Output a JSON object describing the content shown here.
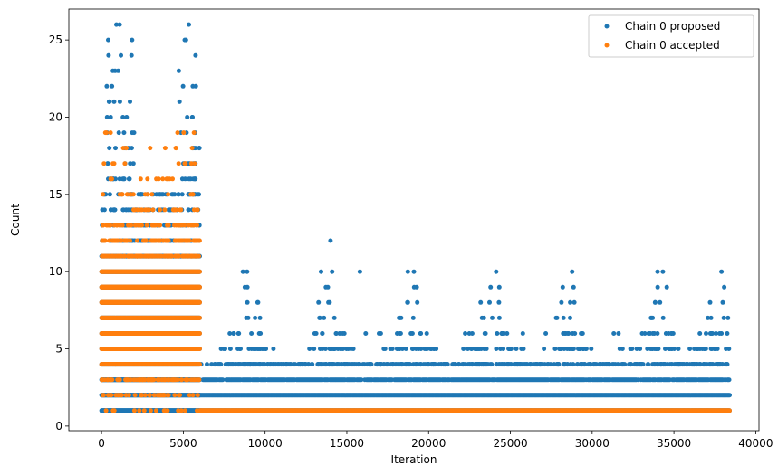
{
  "chart_data": {
    "type": "scatter",
    "title": "",
    "xlabel": "Iteration",
    "ylabel": "Count",
    "xlim": [
      -2000,
      40200
    ],
    "ylim": [
      -0.3,
      27.0
    ],
    "xticks": [
      0,
      5000,
      10000,
      15000,
      20000,
      25000,
      30000,
      35000,
      40000
    ],
    "yticks": [
      0,
      5,
      10,
      15,
      20,
      25
    ],
    "grid": false,
    "legend_position": "top-right",
    "total_iterations": 38400,
    "series": [
      {
        "name": "Chain 0 proposed",
        "color": "#1f77b4",
        "phase1": {
          "x_range": [
            0,
            6000
          ],
          "dense_values": [
            1,
            2,
            3,
            4,
            5,
            6,
            7,
            8,
            9,
            10,
            11,
            12,
            13,
            14,
            15
          ],
          "sparse_values": [
            16,
            17,
            18,
            19,
            20,
            21,
            22,
            23,
            24,
            25,
            26
          ]
        },
        "phase2": {
          "x_range": [
            6000,
            38400
          ],
          "dense_values": [
            1,
            2
          ],
          "medium_values": [
            3
          ],
          "sparse_values": [
            4,
            5,
            6,
            7,
            8,
            9,
            10
          ],
          "max_points": [
            [
              14000,
              12
            ],
            [
              8900,
              10
            ],
            [
              14100,
              10
            ],
            [
              15800,
              10
            ],
            [
              19100,
              10
            ],
            [
              34000,
              10
            ]
          ]
        }
      },
      {
        "name": "Chain 0 accepted",
        "color": "#ff7f0e",
        "phase1": {
          "x_range": [
            0,
            6000
          ],
          "dense_values": [
            4,
            5,
            6,
            7,
            8,
            9,
            10,
            11,
            12
          ],
          "sparse_values": [
            1,
            2,
            3,
            13,
            14,
            15,
            16,
            17,
            18,
            19
          ]
        },
        "phase2": {
          "x_range": [
            6000,
            38400
          ],
          "dense_values": [
            1
          ]
        }
      }
    ]
  }
}
